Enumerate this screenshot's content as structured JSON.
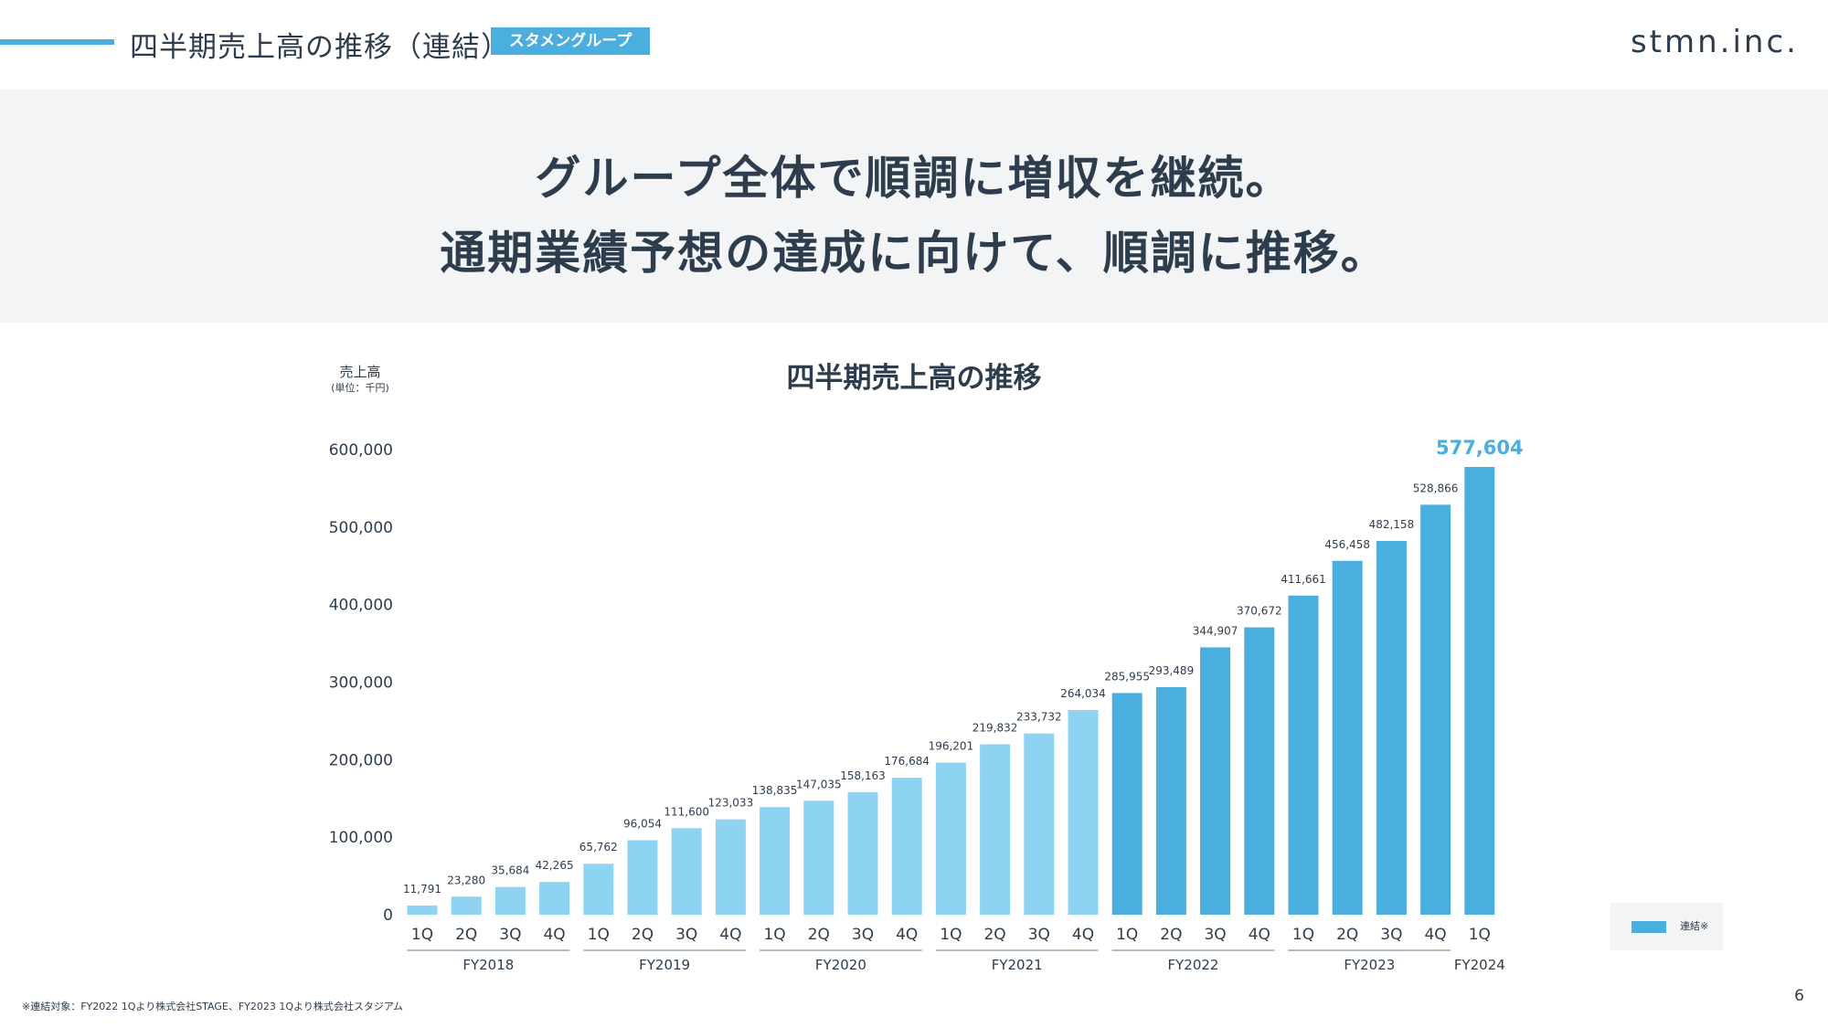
{
  "header": {
    "title": "四半期売上高の推移（連結）",
    "badge": "スタメングループ",
    "logo": "stmn.inc."
  },
  "banner": {
    "line1": "グループ全体で順調に増収を継続。",
    "line2": "通期業績予想の達成に向けて、順調に推移。"
  },
  "colors": {
    "accent": "#4aafde",
    "light_bar": "#8ed4f2",
    "dark_bar": "#4aafde",
    "text": "#2e3d4d"
  },
  "chart_data": {
    "type": "bar",
    "title": "四半期売上高の推移",
    "ylabel": "売上高",
    "yunit": "(単位：千円)",
    "ylim": [
      0,
      600000
    ],
    "yticks": [
      "0",
      "100,000",
      "200,000",
      "300,000",
      "400,000",
      "500,000",
      "600,000"
    ],
    "ytick_values": [
      0,
      100000,
      200000,
      300000,
      400000,
      500000,
      600000
    ],
    "categories": [
      "1Q",
      "2Q",
      "3Q",
      "4Q",
      "1Q",
      "2Q",
      "3Q",
      "4Q",
      "1Q",
      "2Q",
      "3Q",
      "4Q",
      "1Q",
      "2Q",
      "3Q",
      "4Q",
      "1Q",
      "2Q",
      "3Q",
      "4Q",
      "1Q",
      "2Q",
      "3Q",
      "4Q",
      "1Q"
    ],
    "values": [
      11791,
      23280,
      35684,
      42265,
      65762,
      96054,
      111600,
      123033,
      138835,
      147035,
      158163,
      176684,
      196201,
      219832,
      233732,
      264034,
      285955,
      293489,
      344907,
      370672,
      411661,
      456458,
      482158,
      528866,
      577604
    ],
    "value_labels": [
      "11,791",
      "23,280",
      "35,684",
      "42,265",
      "65,762",
      "96,054",
      "111,600",
      "123,033",
      "138,835",
      "147,035",
      "158,163",
      "176,684",
      "196,201",
      "219,832",
      "233,732",
      "264,034",
      "285,955",
      "293,489",
      "344,907",
      "370,672",
      "411,661",
      "456,458",
      "482,158",
      "528,866",
      "577,604"
    ],
    "consolidated_start_index": 16,
    "fiscal_years": [
      {
        "label": "FY2018",
        "start": 0,
        "end": 3
      },
      {
        "label": "FY2019",
        "start": 4,
        "end": 7
      },
      {
        "label": "FY2020",
        "start": 8,
        "end": 11
      },
      {
        "label": "FY2021",
        "start": 12,
        "end": 15
      },
      {
        "label": "FY2022",
        "start": 16,
        "end": 19
      },
      {
        "label": "FY2023",
        "start": 20,
        "end": 23
      },
      {
        "label": "FY2024",
        "start": 24,
        "end": 24
      }
    ],
    "legend": [
      {
        "name": "連結※"
      }
    ],
    "grid": false
  },
  "footnote": "※連結対象：FY2022 1Qより株式会社STAGE、FY2023 1Qより株式会社スタジアム",
  "page_number": "6"
}
